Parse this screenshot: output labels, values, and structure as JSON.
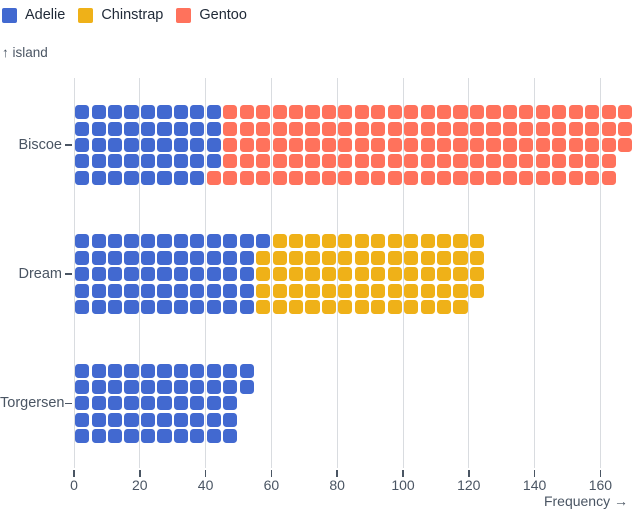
{
  "legend": {
    "items": [
      {
        "label": "Adelie",
        "color": "#4269d0"
      },
      {
        "label": "Chinstrap",
        "color": "#efb118"
      },
      {
        "label": "Gentoo",
        "color": "#ff725c"
      }
    ]
  },
  "chart_data": {
    "type": "waffle",
    "orientation": "horizontal",
    "unit_value": 1,
    "cells_per_column": 5,
    "xlabel": "Frequency →",
    "ylabel": "↑ island",
    "x_ticks": [
      0,
      20,
      40,
      60,
      80,
      100,
      120,
      140,
      160
    ],
    "xlim": [
      0,
      170
    ],
    "grid": true,
    "legend_position": "top-left",
    "categories": [
      "Biscoe",
      "Dream",
      "Torgersen"
    ],
    "series": [
      {
        "name": "Adelie",
        "color": "#4269d0",
        "values": [
          44,
          56,
          52
        ]
      },
      {
        "name": "Chinstrap",
        "color": "#efb118",
        "values": [
          0,
          68,
          0
        ]
      },
      {
        "name": "Gentoo",
        "color": "#ff725c",
        "values": [
          124,
          0,
          0
        ]
      }
    ],
    "totals": [
      168,
      124,
      52
    ]
  },
  "colors": {
    "background": "#ffffff",
    "grid_line": "#d9dce0",
    "axis_text": "#4a5563",
    "legend_text": "#1f2937"
  }
}
